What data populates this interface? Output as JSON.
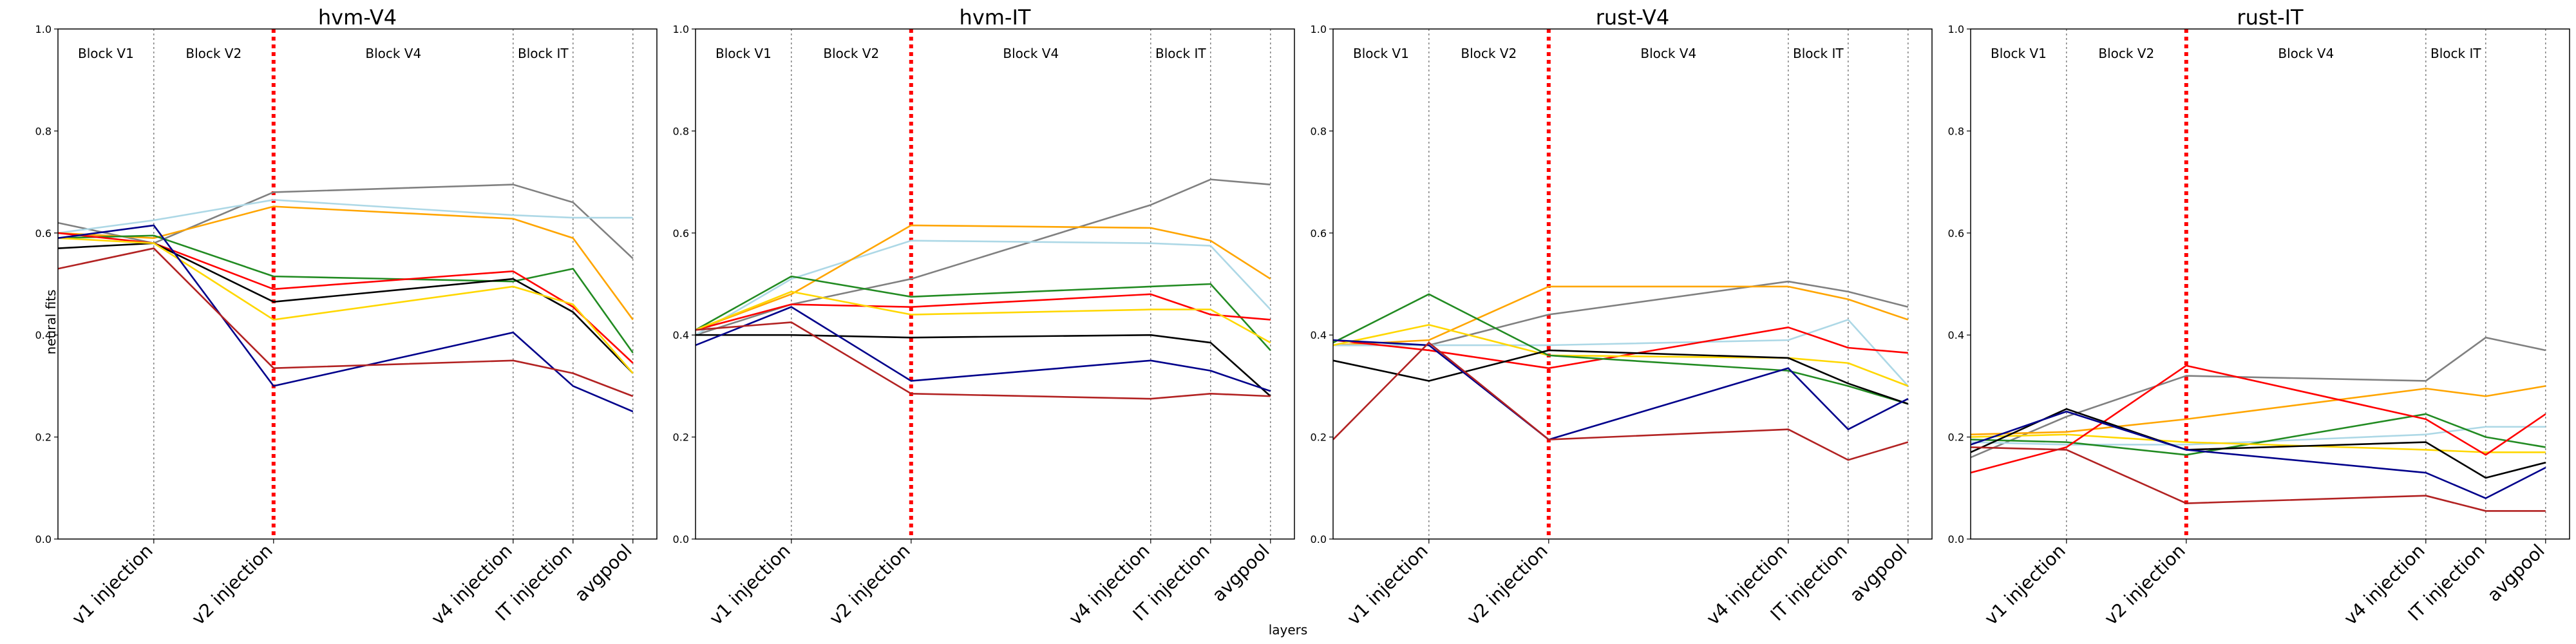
{
  "chart_data": {
    "type": "line",
    "xlabel": "layers",
    "ylabel": "neural fits",
    "ylim": [
      0.0,
      1.0
    ],
    "yticks": [
      "0.0",
      "0.2",
      "0.4",
      "0.6",
      "0.8",
      "1.0"
    ],
    "x_positions": [
      0,
      1,
      3,
      3.5,
      4
    ],
    "x_tick_labels": [
      "v1 injection",
      "v2 injection",
      "v4 injection",
      "IT injection",
      "avgpool"
    ],
    "xlim": [
      -0.8,
      4.2
    ],
    "block_labels": [
      "Block V1",
      "Block V2",
      "Block V4",
      "Block IT"
    ],
    "block_label_x": [
      -0.4,
      0.5,
      2.0,
      3.25
    ],
    "dotted_dividers": [
      0,
      3,
      3.5,
      4
    ],
    "red_divider": 1,
    "grid": false,
    "panels": [
      {
        "title": "hvm-V4",
        "series": [
          {
            "color": "#808080",
            "values": [
              0.58,
              0.68,
              0.695,
              0.66,
              0.55
            ],
            "start": 0.62
          },
          {
            "color": "#ADD8E6",
            "values": [
              0.625,
              0.665,
              0.635,
              0.63,
              0.63
            ],
            "start": 0.6
          },
          {
            "color": "#FFA500",
            "values": [
              0.59,
              0.652,
              0.628,
              0.59,
              0.43
            ],
            "start": 0.6
          },
          {
            "color": "#228B22",
            "values": [
              0.595,
              0.515,
              0.505,
              0.53,
              0.365
            ],
            "start": 0.59
          },
          {
            "color": "#FF0000",
            "values": [
              0.58,
              0.49,
              0.525,
              0.455,
              0.345
            ],
            "start": 0.6
          },
          {
            "color": "#000000",
            "values": [
              0.58,
              0.465,
              0.51,
              0.445,
              0.325
            ],
            "start": 0.57
          },
          {
            "color": "#FFD700",
            "values": [
              0.58,
              0.43,
              0.495,
              0.46,
              0.325
            ],
            "start": 0.59
          },
          {
            "color": "#00008B",
            "values": [
              0.615,
              0.3,
              0.405,
              0.3,
              0.25
            ],
            "start": 0.59
          },
          {
            "color": "#B22222",
            "values": [
              0.57,
              0.335,
              0.35,
              0.325,
              0.28
            ],
            "start": 0.53
          }
        ]
      },
      {
        "title": "hvm-IT",
        "series": [
          {
            "color": "#808080",
            "values": [
              0.46,
              0.51,
              0.655,
              0.705,
              0.695
            ],
            "start": 0.4
          },
          {
            "color": "#ADD8E6",
            "values": [
              0.51,
              0.585,
              0.58,
              0.575,
              0.45
            ],
            "start": 0.4
          },
          {
            "color": "#FFA500",
            "values": [
              0.48,
              0.615,
              0.61,
              0.585,
              0.51
            ],
            "start": 0.41
          },
          {
            "color": "#228B22",
            "values": [
              0.515,
              0.475,
              0.495,
              0.5,
              0.37
            ],
            "start": 0.41
          },
          {
            "color": "#FF0000",
            "values": [
              0.46,
              0.455,
              0.48,
              0.44,
              0.43
            ],
            "start": 0.41
          },
          {
            "color": "#FFD700",
            "values": [
              0.485,
              0.44,
              0.45,
              0.45,
              0.385
            ],
            "start": 0.41
          },
          {
            "color": "#000000",
            "values": [
              0.4,
              0.395,
              0.4,
              0.385,
              0.28
            ],
            "start": 0.4
          },
          {
            "color": "#00008B",
            "values": [
              0.455,
              0.31,
              0.35,
              0.33,
              0.29
            ],
            "start": 0.38
          },
          {
            "color": "#B22222",
            "values": [
              0.425,
              0.285,
              0.275,
              0.285,
              0.28
            ],
            "start": 0.41
          }
        ]
      },
      {
        "title": "rust-V4",
        "series": [
          {
            "color": "#808080",
            "values": [
              0.38,
              0.44,
              0.505,
              0.485,
              0.455
            ],
            "start": 0.38
          },
          {
            "color": "#FFA500",
            "values": [
              0.39,
              0.495,
              0.495,
              0.47,
              0.43
            ],
            "start": 0.38
          },
          {
            "color": "#ADD8E6",
            "values": [
              0.38,
              0.38,
              0.39,
              0.43,
              0.3
            ],
            "start": 0.38
          },
          {
            "color": "#FF0000",
            "values": [
              0.37,
              0.335,
              0.415,
              0.375,
              0.365
            ],
            "start": 0.39
          },
          {
            "color": "#FFD700",
            "values": [
              0.42,
              0.36,
              0.355,
              0.345,
              0.3
            ],
            "start": 0.38
          },
          {
            "color": "#228B22",
            "values": [
              0.48,
              0.36,
              0.33,
              0.3,
              0.265
            ],
            "start": 0.385
          },
          {
            "color": "#000000",
            "values": [
              0.31,
              0.37,
              0.355,
              0.305,
              0.265
            ],
            "start": 0.35
          },
          {
            "color": "#00008B",
            "values": [
              0.38,
              0.195,
              0.335,
              0.215,
              0.275
            ],
            "start": 0.39
          },
          {
            "color": "#B22222",
            "values": [
              0.385,
              0.195,
              0.215,
              0.155,
              0.19
            ],
            "start": 0.195
          }
        ]
      },
      {
        "title": "rust-IT",
        "series": [
          {
            "color": "#808080",
            "values": [
              0.24,
              0.32,
              0.31,
              0.395,
              0.37
            ],
            "start": 0.16
          },
          {
            "color": "#FFA500",
            "values": [
              0.21,
              0.235,
              0.295,
              0.28,
              0.3
            ],
            "start": 0.205
          },
          {
            "color": "#ADD8E6",
            "values": [
              0.185,
              0.185,
              0.205,
              0.22,
              0.22
            ],
            "start": 0.19
          },
          {
            "color": "#228B22",
            "values": [
              0.19,
              0.165,
              0.245,
              0.2,
              0.18
            ],
            "start": 0.195
          },
          {
            "color": "#FFD700",
            "values": [
              0.205,
              0.19,
              0.175,
              0.17,
              0.17
            ],
            "start": 0.2
          },
          {
            "color": "#FF0000",
            "values": [
              0.18,
              0.34,
              0.235,
              0.165,
              0.245
            ],
            "start": 0.13
          },
          {
            "color": "#000000",
            "values": [
              0.255,
              0.175,
              0.19,
              0.12,
              0.15
            ],
            "start": 0.17
          },
          {
            "color": "#00008B",
            "values": [
              0.25,
              0.175,
              0.13,
              0.08,
              0.14
            ],
            "start": 0.185
          },
          {
            "color": "#B22222",
            "values": [
              0.175,
              0.07,
              0.085,
              0.055,
              0.055
            ],
            "start": 0.18
          }
        ]
      }
    ]
  }
}
